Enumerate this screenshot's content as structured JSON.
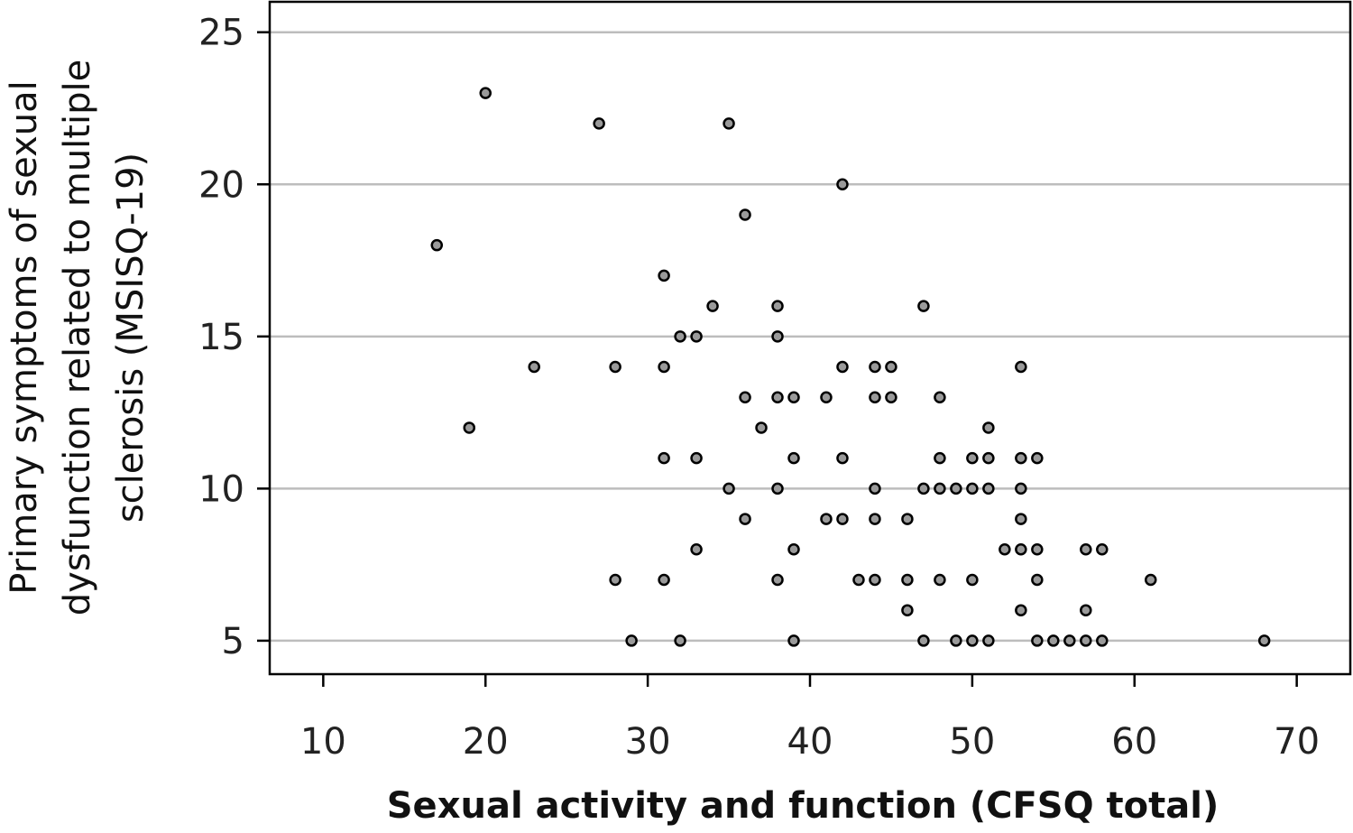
{
  "chart_data": {
    "type": "scatter",
    "title": "",
    "xlabel": "Sexual activity and function (CFSQ total)",
    "ylabel_lines": [
      "Primary symptoms of sexual",
      "dysfunction related to multiple",
      "sclerosis (MSISQ-19)"
    ],
    "xlim": [
      6.7,
      73.3
    ],
    "ylim": [
      3.9,
      26.0
    ],
    "x_ticks": [
      10,
      20,
      30,
      40,
      50,
      60,
      70
    ],
    "y_ticks": [
      5,
      10,
      15,
      20,
      25
    ],
    "grid": "horizontal",
    "legend": "none",
    "point_fill": "#9a9a9a",
    "point_stroke": "#000000",
    "points": [
      [
        17,
        18
      ],
      [
        19,
        12
      ],
      [
        20,
        23
      ],
      [
        23,
        14
      ],
      [
        27,
        22
      ],
      [
        28,
        14
      ],
      [
        28,
        7
      ],
      [
        29,
        5
      ],
      [
        31,
        17
      ],
      [
        31,
        14
      ],
      [
        31,
        11
      ],
      [
        31,
        7
      ],
      [
        32,
        15
      ],
      [
        32,
        5
      ],
      [
        33,
        15
      ],
      [
        33,
        11
      ],
      [
        33,
        8
      ],
      [
        34,
        16
      ],
      [
        35,
        22
      ],
      [
        35,
        10
      ],
      [
        36,
        19
      ],
      [
        36,
        13
      ],
      [
        36,
        9
      ],
      [
        37,
        12
      ],
      [
        38,
        16
      ],
      [
        38,
        15
      ],
      [
        38,
        13
      ],
      [
        38,
        10
      ],
      [
        38,
        7
      ],
      [
        39,
        13
      ],
      [
        39,
        11
      ],
      [
        39,
        8
      ],
      [
        39,
        5
      ],
      [
        41,
        13
      ],
      [
        41,
        9
      ],
      [
        42,
        20
      ],
      [
        42,
        14
      ],
      [
        42,
        11
      ],
      [
        42,
        9
      ],
      [
        43,
        7
      ],
      [
        44,
        14
      ],
      [
        44,
        13
      ],
      [
        44,
        10
      ],
      [
        44,
        9
      ],
      [
        44,
        7
      ],
      [
        45,
        14
      ],
      [
        45,
        13
      ],
      [
        46,
        9
      ],
      [
        46,
        7
      ],
      [
        46,
        6
      ],
      [
        47,
        16
      ],
      [
        47,
        10
      ],
      [
        47,
        5
      ],
      [
        48,
        13
      ],
      [
        48,
        11
      ],
      [
        48,
        10
      ],
      [
        48,
        7
      ],
      [
        49,
        10
      ],
      [
        49,
        5
      ],
      [
        50,
        11
      ],
      [
        50,
        10
      ],
      [
        50,
        7
      ],
      [
        50,
        5
      ],
      [
        51,
        12
      ],
      [
        51,
        11
      ],
      [
        51,
        10
      ],
      [
        51,
        5
      ],
      [
        52,
        8
      ],
      [
        53,
        14
      ],
      [
        53,
        11
      ],
      [
        53,
        10
      ],
      [
        53,
        9
      ],
      [
        53,
        8
      ],
      [
        53,
        6
      ],
      [
        54,
        11
      ],
      [
        54,
        8
      ],
      [
        54,
        7
      ],
      [
        54,
        5
      ],
      [
        55,
        5
      ],
      [
        56,
        5
      ],
      [
        57,
        8
      ],
      [
        57,
        6
      ],
      [
        57,
        5
      ],
      [
        58,
        8
      ],
      [
        58,
        5
      ],
      [
        61,
        7
      ],
      [
        68,
        5
      ]
    ]
  }
}
